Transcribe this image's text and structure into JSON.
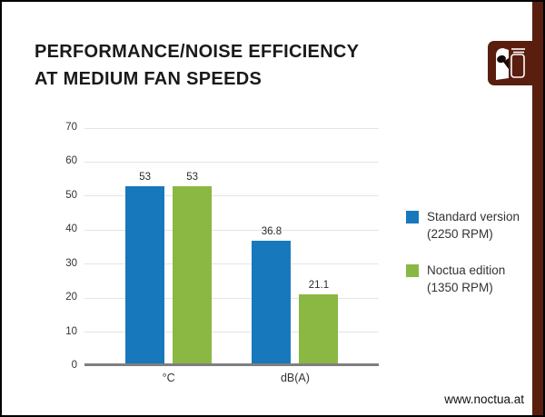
{
  "page": {
    "title_line1": "PERFORMANCE/NOISE EFFICIENCY",
    "title_line2": "AT MEDIUM FAN SPEEDS",
    "website": "www.noctua.at"
  },
  "colors": {
    "brand_brown": "#5a1e0f",
    "series_blue": "#1878bc",
    "series_green": "#8ab843",
    "gridline": "#e4e4e4",
    "baseline": "#7f7f7f"
  },
  "chart_data": {
    "type": "bar",
    "title": "PERFORMANCE/NOISE EFFICIENCY AT MEDIUM FAN SPEEDS",
    "categories": [
      "°C",
      "dB(A)"
    ],
    "series": [
      {
        "name": "Standard version (2250 RPM)",
        "color": "#1878bc",
        "values": [
          53,
          36.8
        ]
      },
      {
        "name": "Noctua edition (1350 RPM)",
        "color": "#8ab843",
        "values": [
          53,
          21.1
        ]
      }
    ],
    "xlabel": "",
    "ylabel": "",
    "ylim": [
      0,
      70
    ],
    "ytick_step": 10,
    "grid": true,
    "legend_position": "right",
    "legend": [
      {
        "lines": [
          "Standard version",
          "(2250 RPM)"
        ],
        "color": "#1878bc"
      },
      {
        "lines": [
          "Noctua edition",
          "(1350 RPM)"
        ],
        "color": "#8ab843"
      }
    ]
  }
}
